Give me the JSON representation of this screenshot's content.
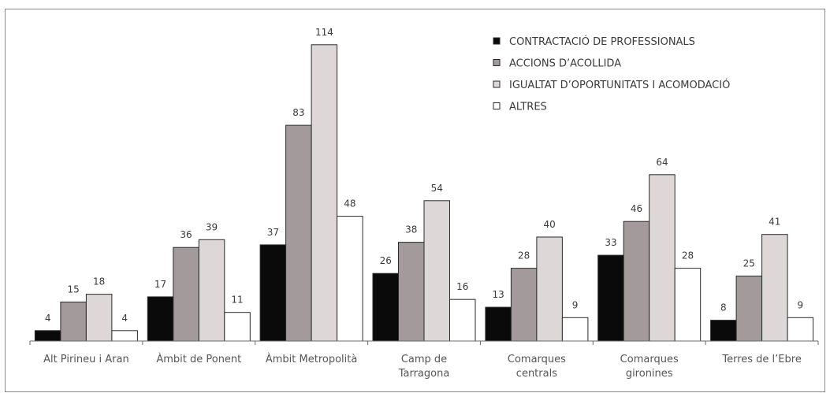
{
  "chart_data": {
    "type": "bar",
    "title": "",
    "xlabel": "",
    "ylabel": "",
    "ylim": [
      0,
      120
    ],
    "grid": false,
    "legend_position": "top-right",
    "categories": [
      "Alt Pirineu i Aran",
      "Àmbit de Ponent",
      "Àmbit Metropolità",
      "Camp de Tarragona",
      "Comarques centrals",
      "Comarques gironines",
      "Terres de l’Ebre"
    ],
    "category_lines": [
      [
        "Alt Pirineu i Aran"
      ],
      [
        "Àmbit de Ponent"
      ],
      [
        "Àmbit Metropolità"
      ],
      [
        "Camp de",
        "Tarragona"
      ],
      [
        "Comarques",
        "centrals"
      ],
      [
        "Comarques",
        "gironines"
      ],
      [
        "Terres de l’Ebre"
      ]
    ],
    "series": [
      {
        "name": "CONTRACTACIÓ DE PROFESSIONALS",
        "color": "#0a0a0a",
        "values": [
          4,
          17,
          37,
          26,
          13,
          33,
          8
        ]
      },
      {
        "name": "ACCIONS D’ACOLLIDA",
        "color": "#a39a9c",
        "values": [
          15,
          36,
          83,
          38,
          28,
          46,
          25
        ]
      },
      {
        "name": "IGUALTAT D’OPORTUNITATS I ACOMODACIÓ",
        "color": "#ddd7d8",
        "values": [
          18,
          39,
          114,
          54,
          40,
          64,
          41
        ]
      },
      {
        "name": "ALTRES",
        "color": "#ffffff",
        "values": [
          4,
          11,
          48,
          16,
          9,
          28,
          9
        ]
      }
    ]
  }
}
